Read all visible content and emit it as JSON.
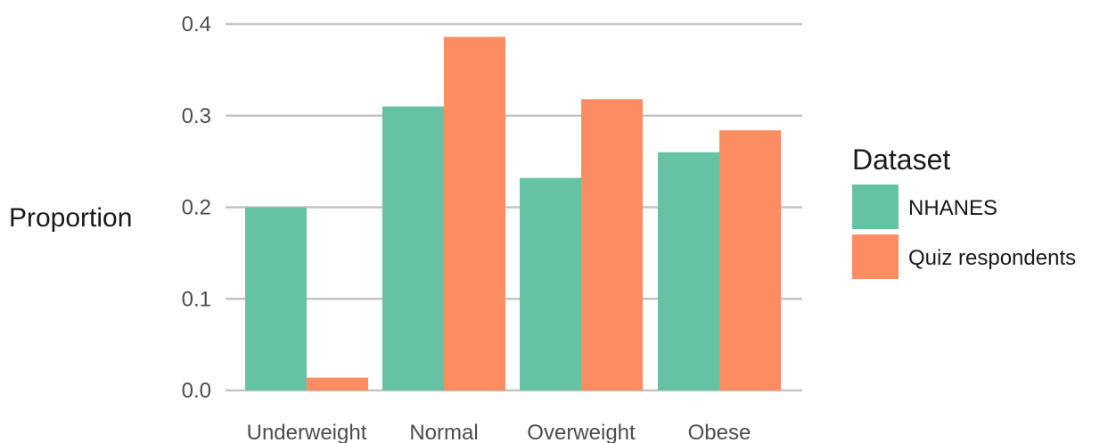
{
  "chart_data": {
    "type": "bar",
    "title": "",
    "xlabel": "",
    "ylabel": "Proportion",
    "categories": [
      "Underweight",
      "Normal",
      "Overweight",
      "Obese"
    ],
    "series": [
      {
        "name": "NHANES",
        "values": [
          0.2,
          0.31,
          0.232,
          0.26
        ],
        "color": "#66c2a5"
      },
      {
        "name": "Quiz respondents",
        "values": [
          0.014,
          0.386,
          0.318,
          0.284
        ],
        "color": "#fc8d62"
      }
    ],
    "ylim": [
      0,
      0.4
    ],
    "yticks": [
      "0.0",
      "0.1",
      "0.2",
      "0.3",
      "0.4"
    ],
    "grid": "horizontal",
    "legend": {
      "title": "Dataset",
      "placement": "right"
    }
  }
}
